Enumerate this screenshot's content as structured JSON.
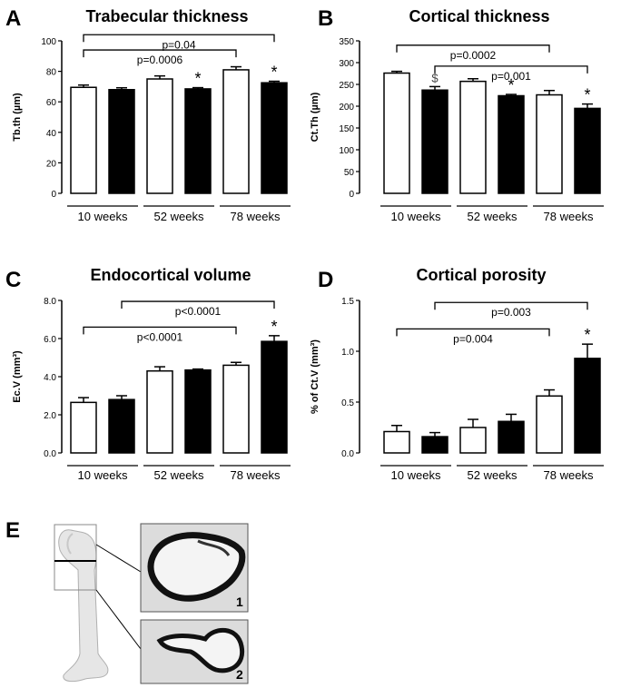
{
  "group_labels": [
    "10 weeks",
    "52 weeks",
    "78 weeks"
  ],
  "bar_series": [
    "open",
    "filled"
  ],
  "colors": {
    "open": "#ffffff",
    "filled": "#000000",
    "stroke": "#000000",
    "bone_bg": "#d8d8d8"
  },
  "chart_data": [
    {
      "type": "bar",
      "panel_letter": "A",
      "title": "Trabecular thickness",
      "ylabel": "Tb.th (µm)",
      "ylim": [
        0,
        100
      ],
      "yticks": [
        "0",
        "20",
        "40",
        "60",
        "80",
        "100"
      ],
      "yticks_values": [
        0,
        20,
        40,
        60,
        80,
        100
      ],
      "categories": [
        "10 weeks",
        "52 weeks",
        "78 weeks"
      ],
      "series": [
        {
          "name": "open",
          "values": [
            69.5,
            75,
            81
          ],
          "errors": [
            1.5,
            2,
            2
          ]
        },
        {
          "name": "filled",
          "values": [
            68,
            68.5,
            72.5
          ],
          "errors": [
            1.2,
            0.8,
            1
          ]
        }
      ],
      "stars": [
        "",
        "*",
        "*"
      ],
      "dollar": [
        "",
        "",
        ""
      ],
      "brackets": [
        {
          "label": "p=0.04",
          "from": [
            0,
            0
          ],
          "to": [
            2,
            1
          ],
          "y": 104,
          "level": 1
        },
        {
          "label": "p=0.0006",
          "from": [
            0,
            0
          ],
          "to": [
            2,
            0
          ],
          "y": 94,
          "level": 0
        }
      ]
    },
    {
      "type": "bar",
      "panel_letter": "B",
      "title": "Cortical thickness",
      "ylabel": "Ct.Th (µm)",
      "ylim": [
        0,
        350
      ],
      "yticks": [
        "0",
        "50",
        "100",
        "150",
        "200",
        "250",
        "300",
        "350"
      ],
      "yticks_values": [
        0,
        50,
        100,
        150,
        200,
        250,
        300,
        350
      ],
      "categories": [
        "10 weeks",
        "52 weeks",
        "78 weeks"
      ],
      "series": [
        {
          "name": "open",
          "values": [
            276,
            257,
            226
          ],
          "errors": [
            4,
            6,
            10
          ]
        },
        {
          "name": "filled",
          "values": [
            237,
            224,
            195
          ],
          "errors": [
            8,
            3,
            10
          ]
        }
      ],
      "stars": [
        "",
        "*",
        "*"
      ],
      "dollar": [
        "$",
        "",
        ""
      ],
      "brackets": [
        {
          "label": "p=0.0002",
          "from": [
            0,
            0
          ],
          "to": [
            2,
            0
          ],
          "y": 340,
          "level": 1
        },
        {
          "label": "p=0.001",
          "from": [
            0,
            1
          ],
          "to": [
            2,
            1
          ],
          "y": 292,
          "level": 0
        }
      ]
    },
    {
      "type": "bar",
      "panel_letter": "C",
      "title": "Endocortical volume",
      "ylabel": "Ec.V (mm³)",
      "ylim": [
        0,
        8
      ],
      "yticks": [
        "0.0",
        "2.0",
        "4.0",
        "6.0",
        "8.0"
      ],
      "yticks_values": [
        0,
        2,
        4,
        6,
        8
      ],
      "categories": [
        "10 weeks",
        "52 weeks",
        "78 weeks"
      ],
      "series": [
        {
          "name": "open",
          "values": [
            2.65,
            4.3,
            4.6
          ],
          "errors": [
            0.25,
            0.22,
            0.15
          ]
        },
        {
          "name": "filled",
          "values": [
            2.8,
            4.35,
            5.85
          ],
          "errors": [
            0.2,
            0.05,
            0.3
          ]
        }
      ],
      "stars": [
        "",
        "",
        "*"
      ],
      "dollar": [
        "",
        "",
        ""
      ],
      "brackets": [
        {
          "label": "p<0.0001",
          "from": [
            0,
            1
          ],
          "to": [
            2,
            1
          ],
          "y": 7.95,
          "level": 1
        },
        {
          "label": "p<0.0001",
          "from": [
            0,
            0
          ],
          "to": [
            2,
            0
          ],
          "y": 6.6,
          "level": 0
        }
      ]
    },
    {
      "type": "bar",
      "panel_letter": "D",
      "title": "Cortical porosity",
      "ylabel": "% of Ct.V (mm³)",
      "ylim": [
        0,
        1.5
      ],
      "yticks": [
        "0.0",
        "0.5",
        "1.0",
        "1.5"
      ],
      "yticks_values": [
        0,
        0.5,
        1.0,
        1.5
      ],
      "categories": [
        "10 weeks",
        "52 weeks",
        "78 weeks"
      ],
      "series": [
        {
          "name": "open",
          "values": [
            0.21,
            0.25,
            0.56
          ],
          "errors": [
            0.06,
            0.08,
            0.06
          ]
        },
        {
          "name": "filled",
          "values": [
            0.16,
            0.31,
            0.93
          ],
          "errors": [
            0.04,
            0.07,
            0.14
          ]
        }
      ],
      "stars": [
        "",
        "",
        "*"
      ],
      "dollar": [
        "",
        "",
        ""
      ],
      "brackets": [
        {
          "label": "p=0.003",
          "from": [
            0,
            1
          ],
          "to": [
            2,
            1
          ],
          "y": 1.48,
          "level": 1
        },
        {
          "label": "p=0.004",
          "from": [
            0,
            0
          ],
          "to": [
            2,
            0
          ],
          "y": 1.22,
          "level": 0
        }
      ]
    }
  ],
  "panel_e": {
    "letter": "E",
    "inset_labels": [
      "1",
      "2"
    ]
  }
}
